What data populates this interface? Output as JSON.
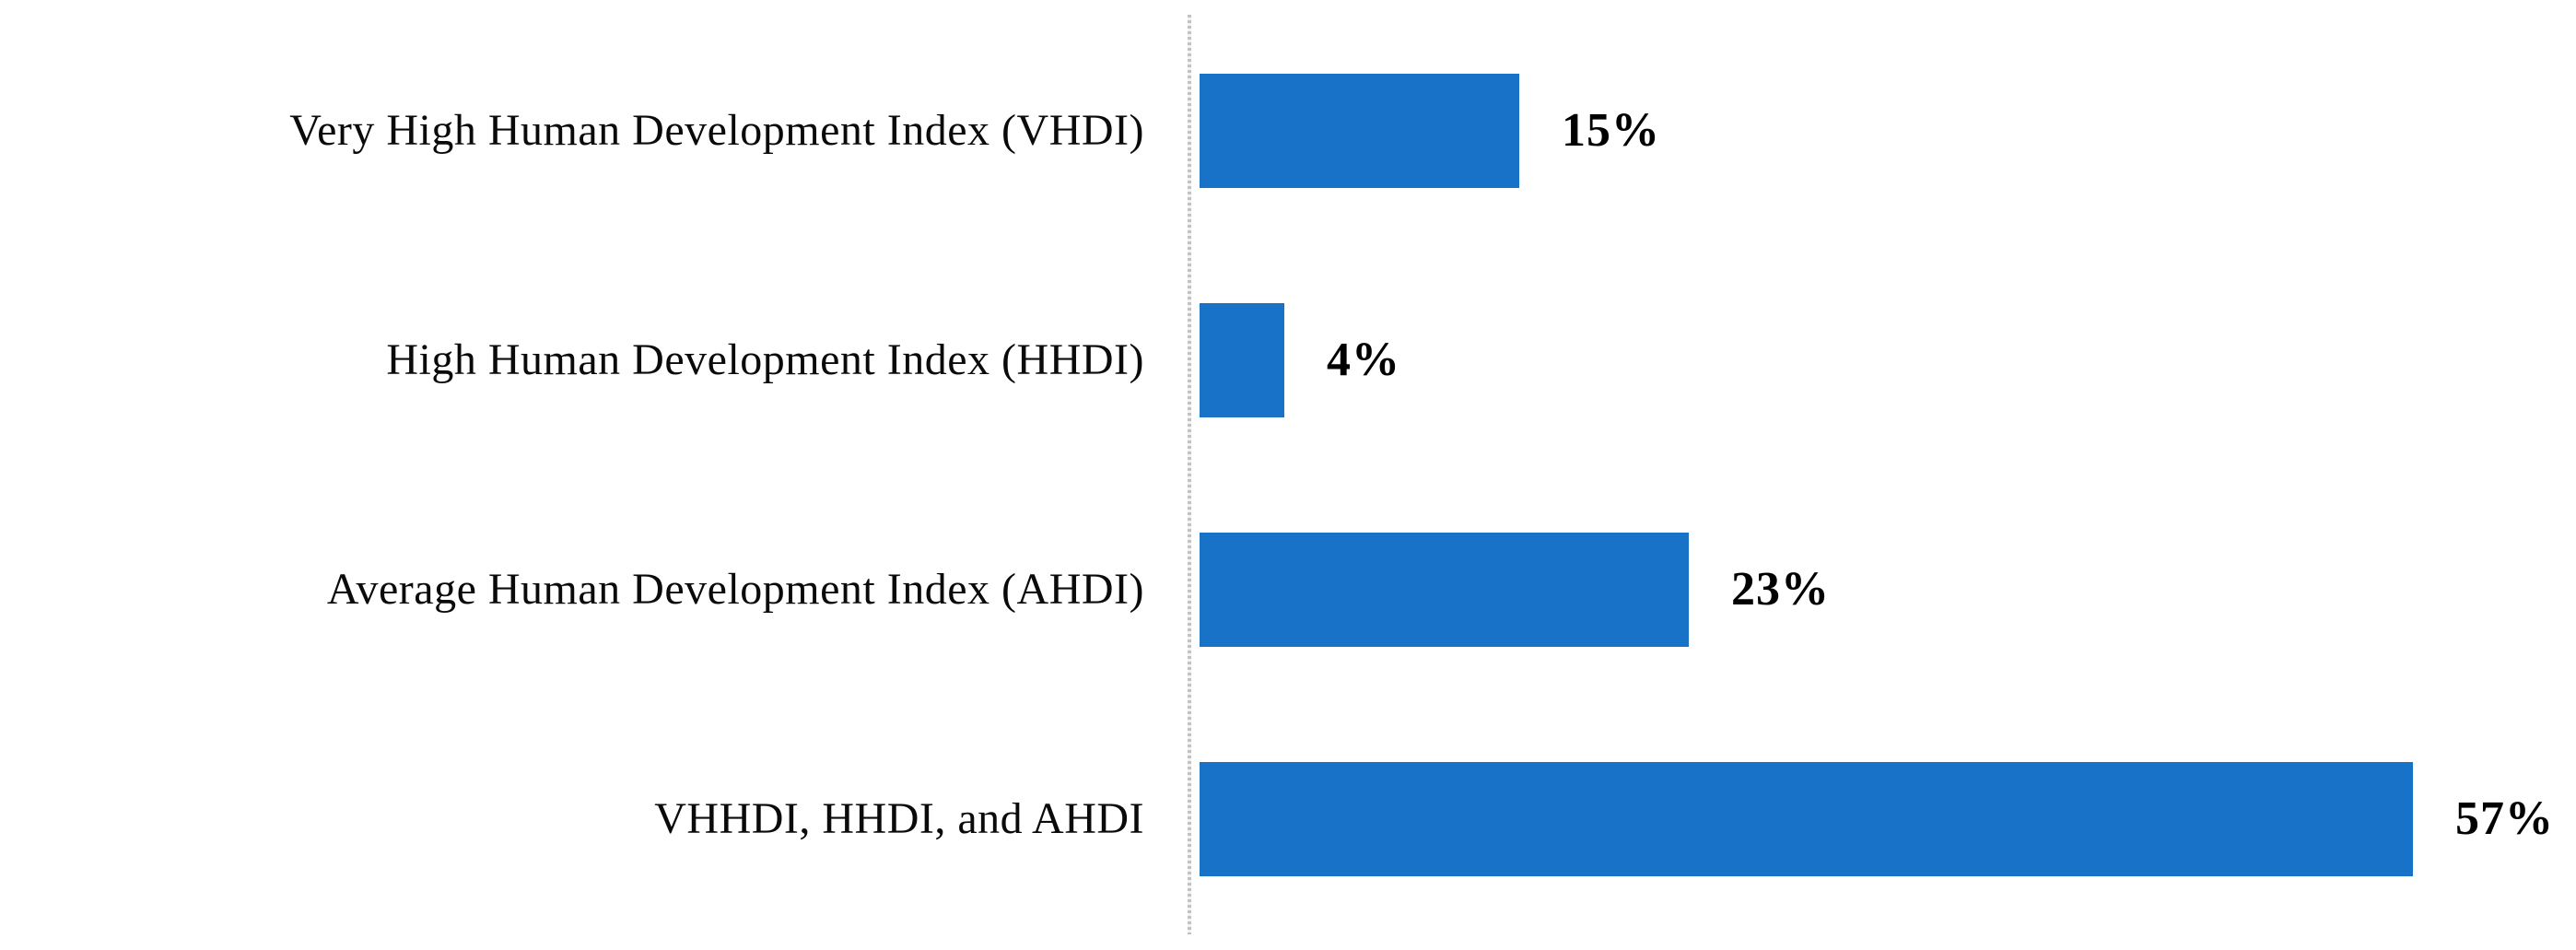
{
  "chart_data": {
    "type": "bar",
    "orientation": "horizontal",
    "categories": [
      "Very High Human Development Index (VHDI)",
      "High Human Development Index (HHDI)",
      "Average Human Development Index (AHDI)",
      "VHHDI, HHDI, and AHDI"
    ],
    "values": [
      15,
      4,
      23,
      57
    ],
    "data_labels": [
      "15%",
      "4%",
      "23%",
      "57%"
    ],
    "unit": "percent",
    "bar_color": "#1772c8",
    "axis_line_color": "#c2c2c2",
    "text_color": "#000000",
    "background_color": "#ffffff",
    "xlim": [
      0,
      65
    ],
    "grid": false,
    "legend": false,
    "value_axis_labels_visible": false
  }
}
